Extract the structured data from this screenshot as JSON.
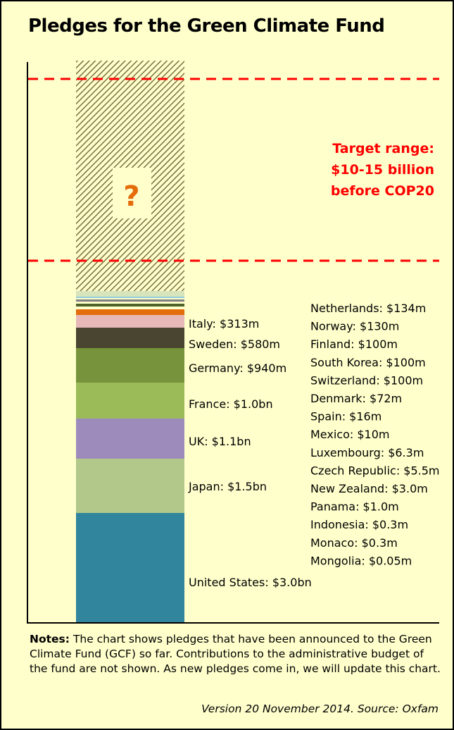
{
  "chart_data": {
    "type": "bar",
    "title": "Pledges for the Green Climate Fund",
    "units": "USD",
    "stacked": true,
    "series": [
      {
        "label": "United States: $3.0bn",
        "value": 3000,
        "color": "#31859c"
      },
      {
        "label": "Japan: $1.5bn",
        "value": 1500,
        "color": "#b1c88a"
      },
      {
        "label": "UK: $1.1bn",
        "value": 1100,
        "color": "#9d8bbb"
      },
      {
        "label": "France: $1.0bn",
        "value": 1000,
        "color": "#9bbb59"
      },
      {
        "label": "Germany: $940m",
        "value": 940,
        "color": "#77933c"
      },
      {
        "label": "Sweden: $580m",
        "value": 580,
        "color": "#4a4530"
      },
      {
        "label": "Italy: $313m",
        "value": 313,
        "color": "#e6b9b8"
      },
      {
        "label": "Netherlands: $134m",
        "value": 134,
        "color": "#e46c0a"
      },
      {
        "label": "Norway: $130m",
        "value": 130,
        "color": "#ffffcc"
      },
      {
        "label": "Finland: $100m",
        "value": 100,
        "color": "#4f6228"
      },
      {
        "label": "South Korea: $100m",
        "value": 100,
        "color": "#ffffcc"
      },
      {
        "label": "Switzerland: $100m",
        "value": 100,
        "color": "#7f7f7f"
      },
      {
        "label": "Denmark: $72m",
        "value": 72,
        "color": "#ffffcc"
      },
      {
        "label": "Spain: $16m",
        "value": 16,
        "color": "#93cddd"
      },
      {
        "label": "Mexico: $10m",
        "value": 10,
        "color": "#d8e4bc"
      },
      {
        "label": "Luxembourg: $6.3m",
        "value": 6.3,
        "color": "#d8e4bc"
      },
      {
        "label": "Czech Republic: $5.5m",
        "value": 5.5,
        "color": "#d8e4bc"
      },
      {
        "label": "New Zealand: $3.0m",
        "value": 3.0,
        "color": "#d8e4bc"
      },
      {
        "label": "Panama: $1.0m",
        "value": 1.0,
        "color": "#d8e4bc"
      },
      {
        "label": "Indonesia: $0.3m",
        "value": 0.3,
        "color": "#d8e4bc"
      },
      {
        "label": "Monaco: $0.3m",
        "value": 0.3,
        "color": "#d8e4bc"
      },
      {
        "label": "Mongolia: $0.05m",
        "value": 0.05,
        "color": "#d8e4bc"
      }
    ],
    "labelled_count": 7,
    "target": {
      "low": 10000,
      "high": 15000,
      "lines": [
        "Target range:",
        "$10-15 billion",
        "before COP20"
      ],
      "line_color": "#ff0000"
    },
    "unknown_marker": "?"
  },
  "notes": {
    "prefix": "Notes:",
    "text": " The chart shows pledges that have been announced to the Green Climate Fund (GCF) so far. Contributions to the administrative budget of the fund are not shown. As new pledges come in, we will update this chart."
  },
  "source": "Version 20 November 2014. Source: Oxfam"
}
